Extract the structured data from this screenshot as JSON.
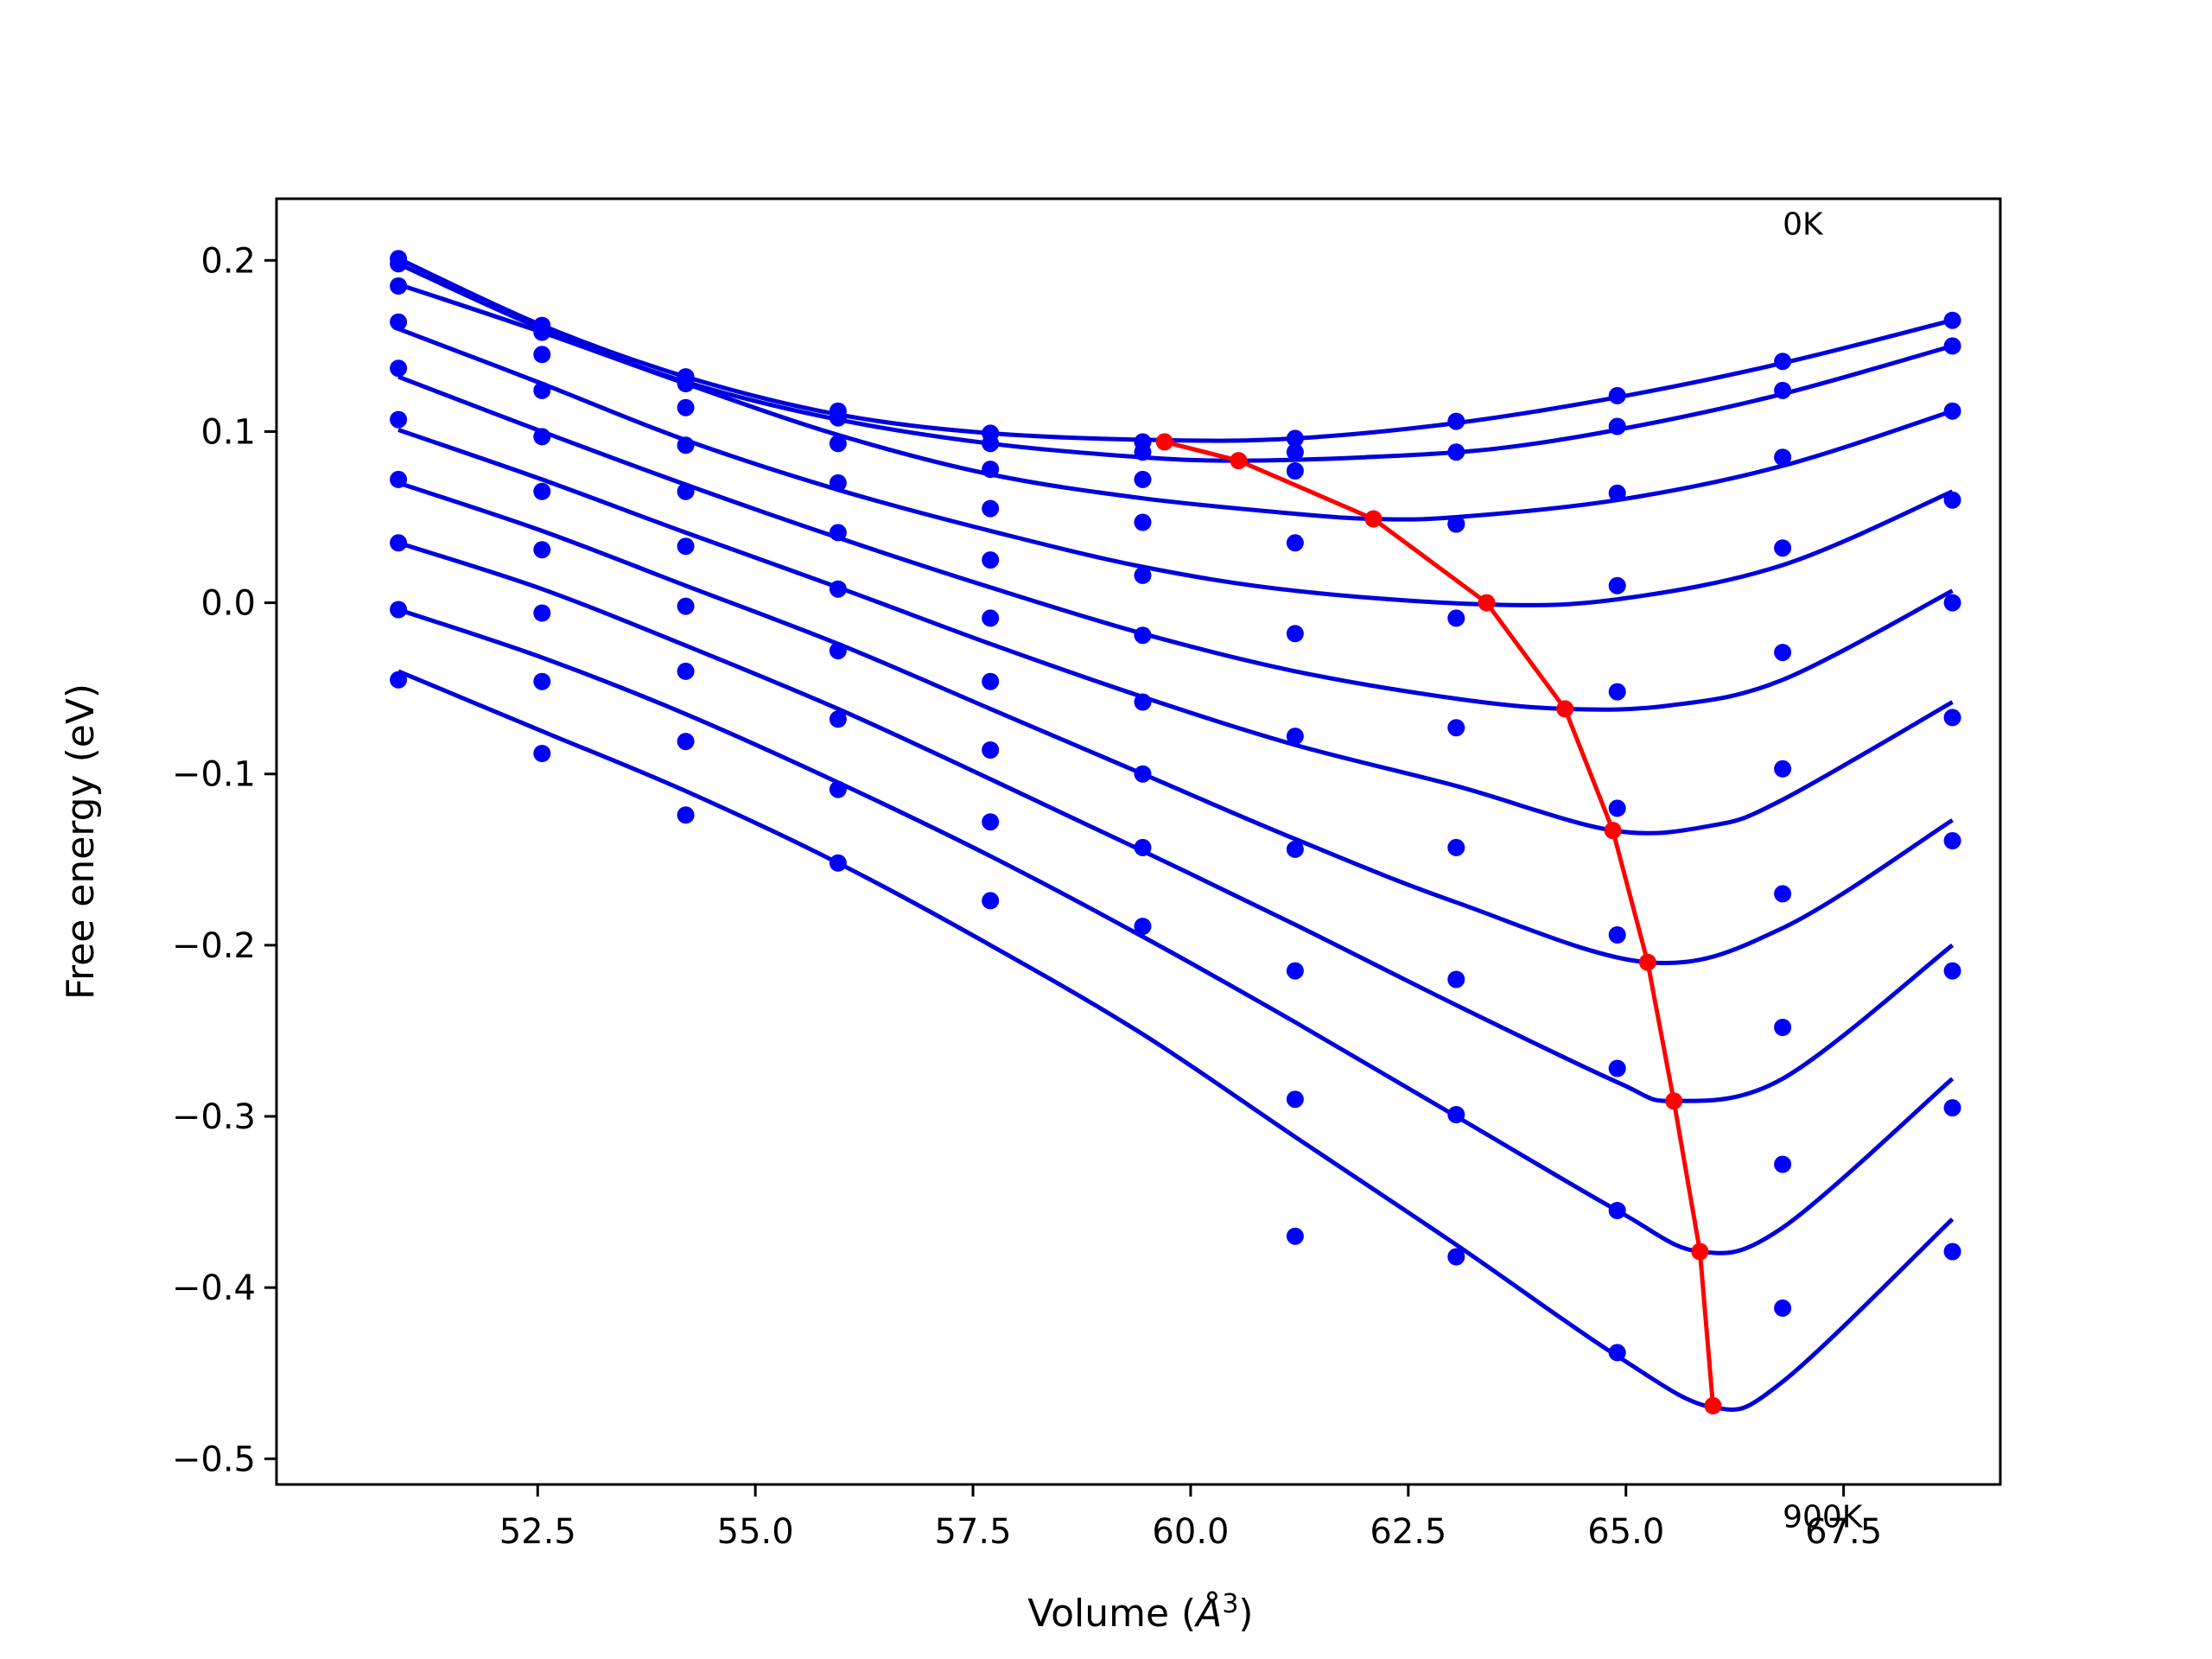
{
  "chart_data": {
    "type": "line",
    "title": "",
    "xlabel": "Volume",
    "xlabel_unit_base": "Å",
    "xlabel_unit_exp": "3",
    "ylabel": "Free energy (eV)",
    "xlim": [
      49.5,
      69.3
    ],
    "ylim": [
      -0.515,
      0.236
    ],
    "xticks": [
      52.5,
      55.0,
      57.5,
      60.0,
      62.5,
      65.0,
      67.5
    ],
    "xtick_labels": [
      "52.5",
      "55.0",
      "57.5",
      "60.0",
      "62.5",
      "65.0",
      "67.5"
    ],
    "yticks": [
      0.2,
      0.1,
      0.0,
      -0.1,
      -0.2,
      -0.3,
      -0.4,
      -0.5
    ],
    "ytick_labels": [
      "0.2",
      "0.1",
      "0.0",
      "−0.1",
      "−0.2",
      "−0.3",
      "−0.4",
      "−0.5"
    ],
    "grid": false,
    "legend": "none",
    "volumes": [
      50.9,
      52.55,
      54.2,
      55.95,
      57.7,
      59.45,
      61.2,
      63.05,
      64.9,
      66.8,
      68.75
    ],
    "series": [
      {
        "temperature_label": "0K",
        "points": [
          0.201,
          0.162,
          0.132,
          0.112,
          0.099,
          0.094,
          0.096,
          0.106,
          0.121,
          0.141,
          0.165
        ],
        "fit_x": [
          50.9,
          52.55,
          54.2,
          55.95,
          57.7,
          59.7,
          61.2,
          63.05,
          64.9,
          66.8,
          68.75
        ],
        "fit_y": [
          0.201,
          0.162,
          0.132,
          0.11,
          0.099,
          0.095,
          0.096,
          0.105,
          0.12,
          0.14,
          0.165
        ]
      },
      {
        "points": [
          0.198,
          0.158,
          0.128,
          0.108,
          0.093,
          0.088,
          0.088,
          0.088,
          0.103,
          0.124,
          0.15
        ],
        "fit_x": [
          50.9,
          52.55,
          54.2,
          55.95,
          57.7,
          59.45,
          60.55,
          62.0,
          63.5,
          65.0,
          66.8,
          68.75
        ],
        "fit_y": [
          0.198,
          0.16,
          0.129,
          0.107,
          0.093,
          0.085,
          0.083,
          0.085,
          0.09,
          0.102,
          0.122,
          0.15
        ]
      },
      {
        "points": [
          0.185,
          0.145,
          0.114,
          0.093,
          0.078,
          0.072,
          0.077,
          0.046,
          0.064,
          0.085,
          0.112
        ],
        "fit_x": [
          50.9,
          52.55,
          54.2,
          55.95,
          57.7,
          59.45,
          61.2,
          62.1,
          63.05,
          64.9,
          66.8,
          68.75
        ],
        "fit_y": [
          0.186,
          0.158,
          0.128,
          0.098,
          0.075,
          0.061,
          0.052,
          0.049,
          0.05,
          0.06,
          0.08,
          0.112
        ]
      },
      {
        "points": [
          0.164,
          0.124,
          0.092,
          0.07,
          0.055,
          0.047,
          0.035,
          0.046,
          0.01,
          0.032,
          0.06
        ],
        "fit_x": [
          50.9,
          52.55,
          54.2,
          55.95,
          57.7,
          59.45,
          61.2,
          63.4,
          64.9,
          66.8,
          68.75
        ],
        "fit_y": [
          0.16,
          0.128,
          0.095,
          0.066,
          0.042,
          0.021,
          0.007,
          -0.001,
          0.002,
          0.022,
          0.065
        ]
      },
      {
        "points": [
          0.137,
          0.097,
          0.065,
          0.041,
          0.025,
          0.016,
          -0.018,
          -0.009,
          -0.052,
          -0.029,
          0.0
        ],
        "fit_x": [
          50.9,
          52.55,
          54.2,
          55.95,
          57.7,
          59.45,
          61.2,
          63.05,
          64.3,
          65.5,
          66.8,
          68.75
        ],
        "fit_y": [
          0.132,
          0.1,
          0.069,
          0.038,
          0.009,
          -0.018,
          -0.04,
          -0.056,
          -0.062,
          -0.06,
          -0.045,
          0.007
        ]
      },
      {
        "points": [
          0.107,
          0.065,
          0.033,
          0.008,
          -0.009,
          -0.019,
          -0.078,
          -0.073,
          -0.12,
          -0.097,
          -0.067
        ],
        "fit_x": [
          50.9,
          52.55,
          54.2,
          55.95,
          57.7,
          59.45,
          61.2,
          63.05,
          64.85,
          66.0,
          66.8,
          68.75
        ],
        "fit_y": [
          0.101,
          0.072,
          0.041,
          0.009,
          -0.024,
          -0.055,
          -0.083,
          -0.107,
          -0.133,
          -0.13,
          -0.115,
          -0.058
        ]
      },
      {
        "points": [
          0.072,
          0.031,
          -0.002,
          -0.028,
          -0.046,
          -0.058,
          -0.144,
          -0.143,
          -0.194,
          -0.17,
          -0.139
        ],
        "fit_x": [
          50.9,
          52.55,
          54.2,
          55.95,
          57.7,
          59.45,
          61.2,
          63.05,
          65.25,
          66.8,
          68.75
        ],
        "fit_y": [
          0.07,
          0.042,
          0.01,
          -0.024,
          -0.062,
          -0.1,
          -0.138,
          -0.175,
          -0.21,
          -0.19,
          -0.127
        ]
      },
      {
        "points": [
          0.035,
          -0.006,
          -0.04,
          -0.068,
          -0.086,
          -0.1,
          -0.215,
          -0.22,
          -0.272,
          -0.248,
          -0.215
        ],
        "fit_x": [
          50.9,
          52.55,
          54.2,
          55.95,
          57.7,
          59.45,
          61.2,
          63.05,
          64.9,
          65.55,
          66.8,
          68.75
        ],
        "fit_y": [
          0.035,
          0.008,
          -0.025,
          -0.062,
          -0.103,
          -0.145,
          -0.188,
          -0.235,
          -0.28,
          -0.291,
          -0.278,
          -0.2
        ]
      },
      {
        "points": [
          -0.004,
          -0.046,
          -0.081,
          -0.109,
          -0.128,
          -0.143,
          -0.29,
          -0.299,
          -0.355,
          -0.328,
          -0.295
        ],
        "fit_x": [
          50.9,
          52.55,
          54.2,
          55.95,
          57.7,
          59.45,
          61.2,
          63.05,
          64.9,
          65.85,
          66.8,
          68.75
        ],
        "fit_y": [
          -0.004,
          -0.032,
          -0.065,
          -0.105,
          -0.148,
          -0.195,
          -0.245,
          -0.3,
          -0.355,
          -0.379,
          -0.365,
          -0.278
        ]
      },
      {
        "temperature_label": "900K",
        "points": [
          -0.045,
          -0.088,
          -0.124,
          -0.152,
          -0.174,
          -0.189,
          -0.37,
          -0.382,
          -0.438,
          -0.412,
          -0.379
        ],
        "fit_x": [
          50.9,
          52.55,
          54.2,
          55.95,
          57.7,
          59.45,
          61.2,
          63.05,
          64.9,
          66.0,
          66.8,
          68.75
        ],
        "fit_y": [
          -0.04,
          -0.075,
          -0.11,
          -0.152,
          -0.2,
          -0.252,
          -0.312,
          -0.375,
          -0.44,
          -0.47,
          -0.455,
          -0.36
        ]
      }
    ],
    "minima_path": {
      "x": [
        59.7,
        60.55,
        62.1,
        63.4,
        64.3,
        64.85,
        65.25,
        65.55,
        65.85,
        66.0
      ],
      "y": [
        0.094,
        0.083,
        0.049,
        0.0,
        -0.062,
        -0.133,
        -0.21,
        -0.291,
        -0.379,
        -0.469
      ]
    },
    "colors": {
      "fits": "#0000dd",
      "points": "#0000ff",
      "minima": "#ff0000"
    },
    "annotations": [
      {
        "text": "0K",
        "x": 66.8,
        "y": 0.215
      },
      {
        "text": "900K",
        "x": 66.8,
        "y": -0.54
      }
    ]
  }
}
